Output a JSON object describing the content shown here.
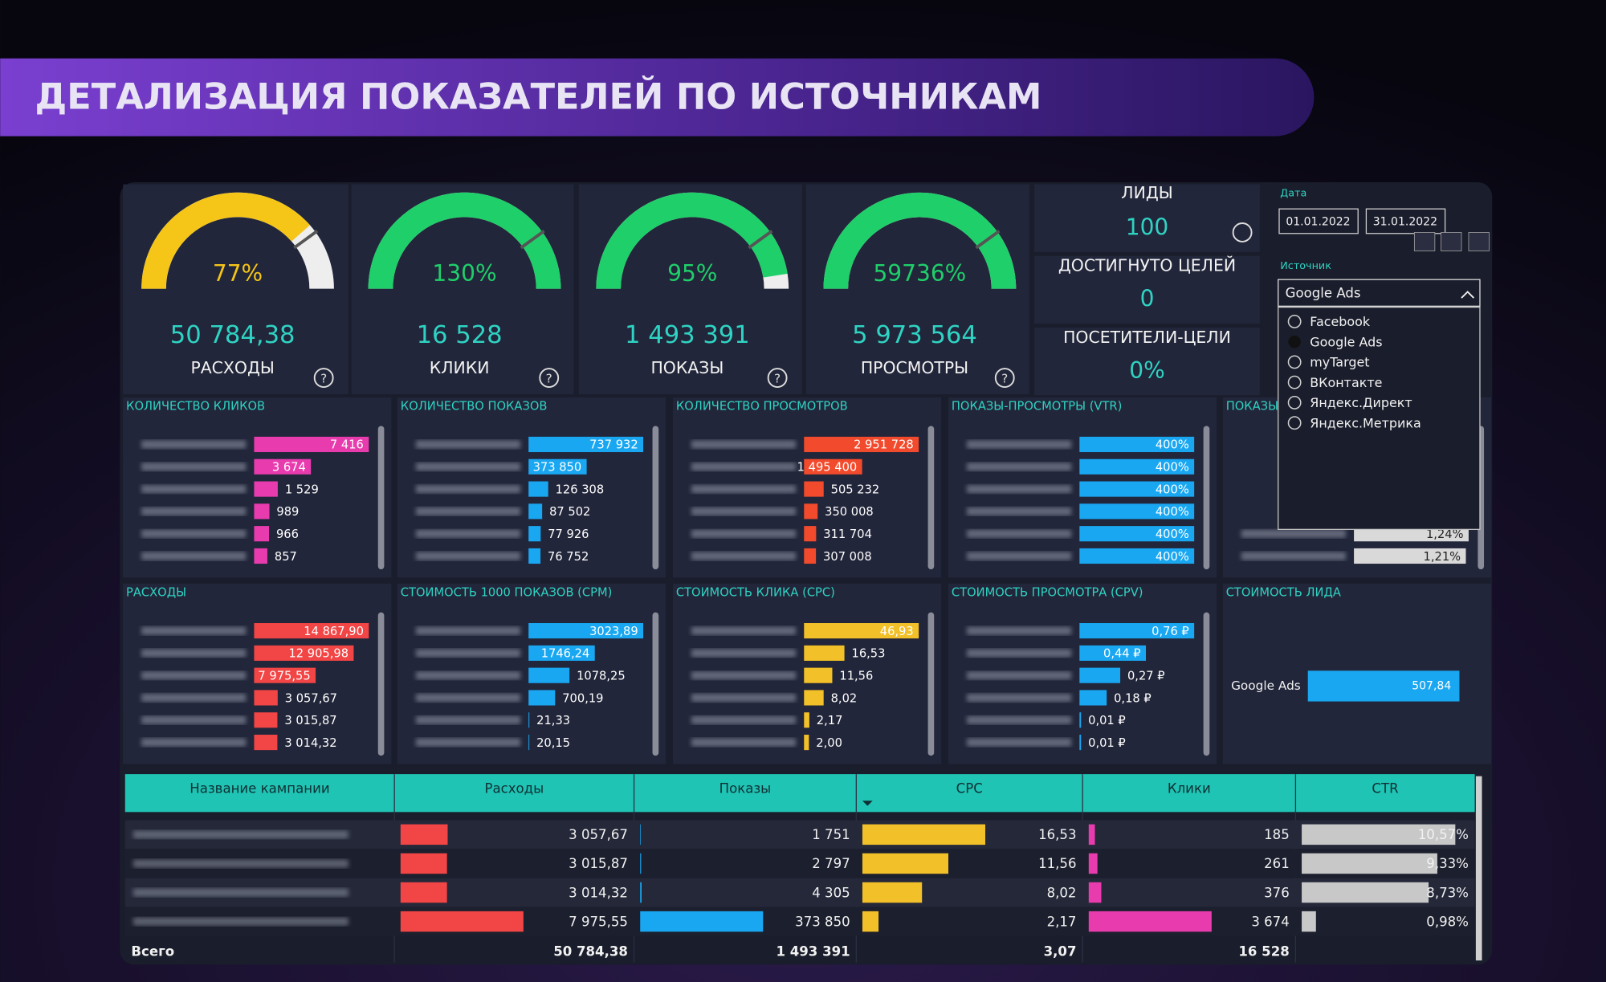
{
  "header": {
    "title": "ДЕТАЛИЗАЦИЯ ПОКАЗАТЕЛЕЙ ПО ИСТОЧНИКАМ"
  },
  "gauges": [
    {
      "value": 77,
      "label": "77%",
      "color": "#f5c518"
    },
    {
      "value": 130,
      "label": "130%",
      "color": "#1fcf6a"
    },
    {
      "value": 95,
      "label": "95%",
      "color": "#1fcf6a"
    },
    {
      "value": 59736,
      "label": "59736%",
      "color": "#1fcf6a"
    }
  ],
  "kpis": [
    {
      "value": 50784.38,
      "value_label": "50 784,38",
      "label": "РАСХОДЫ"
    },
    {
      "value": 16528,
      "value_label": "16 528",
      "label": "КЛИКИ"
    },
    {
      "value": 1493391,
      "value_label": "1 493 391",
      "label": "ПОКАЗЫ"
    },
    {
      "value": 5973564,
      "value_label": "5 973 564",
      "label": "ПРОСМОТРЫ"
    }
  ],
  "cards": [
    {
      "label": "ЛИДЫ",
      "value": 100
    },
    {
      "label": "ДОСТИГНУТО ЦЕЛЕЙ",
      "value": 0
    },
    {
      "label": "ПОСЕТИТЕЛИ-ЦЕЛИ",
      "value": 0,
      "value_label": "0%"
    }
  ],
  "filters": {
    "date_label": "Дата",
    "date_from": "01.01.2022",
    "date_to": "31.01.2022",
    "source_label": "Источник",
    "source_selected": "Google Ads",
    "source_options": [
      "Facebook",
      "Google Ads",
      "myTarget",
      "ВКонтакте",
      "Яндекс.Директ",
      "Яндекс.Метрика"
    ]
  },
  "panels": [
    {
      "title": "КОЛИЧЕСТВО КЛИКОВ",
      "color": "#e83cae",
      "values": [
        7416,
        3674,
        1529,
        989,
        966,
        857
      ],
      "value_labels": [
        "7 416",
        "3 674",
        "1 529",
        "989",
        "966",
        "857"
      ]
    },
    {
      "title": "КОЛИЧЕСТВО ПОКАЗОВ",
      "color": "#19a7f2",
      "values": [
        737932,
        373850,
        126308,
        87502,
        77926,
        76752
      ],
      "value_labels": [
        "737 932",
        "373 850",
        "126 308",
        "87 502",
        "77 926",
        "76 752"
      ]
    },
    {
      "title": "КОЛИЧЕСТВО ПРОСМОТРОВ",
      "color": "#f24a2c",
      "values": [
        2951728,
        1495400,
        505232,
        350008,
        311704,
        307008
      ],
      "value_labels": [
        "2 951 728",
        "1 495 400",
        "505 232",
        "350 008",
        "311 704",
        "307 008"
      ]
    },
    {
      "title": "ПОКАЗЫ-ПРОСМОТРЫ (VTR)",
      "color": "#19a7f2",
      "values": [
        400,
        400,
        400,
        400,
        400,
        400
      ],
      "value_labels": [
        "400%",
        "400%",
        "400%",
        "400%",
        "400%",
        "400%"
      ]
    },
    {
      "title": "ПОКАЗЫ",
      "color": "#d9d9d9",
      "values": [
        1.24,
        1.21
      ],
      "value_labels": [
        "1,24%",
        "1,21%"
      ]
    },
    {
      "title": "РАСХОДЫ",
      "color": "#f24545",
      "values": [
        14867.9,
        12905.98,
        7975.55,
        3057.67,
        3015.87,
        3014.32
      ],
      "value_labels": [
        "14 867,90",
        "12 905,98",
        "7 975,55",
        "3 057,67",
        "3 015,87",
        "3 014,32"
      ]
    },
    {
      "title": "СТОИМОСТЬ 1000 ПОКАЗОВ (CPM)",
      "color": "#19a7f2",
      "values": [
        3023.89,
        1746.24,
        1078.25,
        700.19,
        21.33,
        20.15
      ],
      "value_labels": [
        "3023,89",
        "1746,24",
        "1078,25",
        "700,19",
        "21,33",
        "20,15"
      ]
    },
    {
      "title": "СТОИМОСТЬ КЛИКА (CPC)",
      "color": "#f2c028",
      "values": [
        46.93,
        16.53,
        11.56,
        8.02,
        2.17,
        2.0
      ],
      "value_labels": [
        "46,93",
        "16,53",
        "11,56",
        "8,02",
        "2,17",
        "2,00"
      ]
    },
    {
      "title": "СТОИМОСТЬ ПРОСМОТРА (CPV)",
      "color": "#19a7f2",
      "values": [
        0.76,
        0.44,
        0.27,
        0.18,
        0.01,
        0.01
      ],
      "value_labels": [
        "0,76 ₽",
        "0,44 ₽",
        "0,27 ₽",
        "0,18 ₽",
        "0,01 ₽",
        "0,01 ₽"
      ]
    },
    {
      "title": "СТОИМОСТЬ ЛИДА",
      "color": "#19a7f2",
      "categories": [
        "Google Ads"
      ],
      "values": [
        507.84
      ],
      "value_labels": [
        "507,84"
      ]
    }
  ],
  "table": {
    "columns": [
      "Название кампании",
      "Расходы",
      "Показы",
      "CPC",
      "Клики",
      "CTR"
    ],
    "total_label": "Всего",
    "metrics": [
      {
        "color": "#f24545",
        "values": [
          3057.67,
          3015.87,
          3014.32,
          7975.55
        ],
        "value_labels": [
          "3 057,67",
          "3 015,87",
          "3 014,32",
          "7 975,55"
        ],
        "total": 50784.38,
        "total_label": "50 784,38"
      },
      {
        "color": "#19a7f2",
        "values": [
          1751,
          2797,
          4305,
          373850
        ],
        "value_labels": [
          "1 751",
          "2 797",
          "4 305",
          "373 850"
        ],
        "total": 1493391,
        "total_label": "1 493 391"
      },
      {
        "color": "#f2c028",
        "values": [
          16.53,
          11.56,
          8.02,
          2.17
        ],
        "value_labels": [
          "16,53",
          "11,56",
          "8,02",
          "2,17"
        ],
        "total": 3.07,
        "total_label": "3,07"
      },
      {
        "color": "#e83cae",
        "values": [
          185,
          261,
          376,
          3674
        ],
        "value_labels": [
          "185",
          "261",
          "376",
          "3 674"
        ],
        "total": 16528,
        "total_label": "16 528"
      },
      {
        "color": "#c8c8c8",
        "values": [
          10.57,
          9.33,
          8.73,
          0.98
        ],
        "value_labels": [
          "10,57%",
          "9,33%",
          "8,73%",
          "0,98%"
        ]
      }
    ]
  }
}
